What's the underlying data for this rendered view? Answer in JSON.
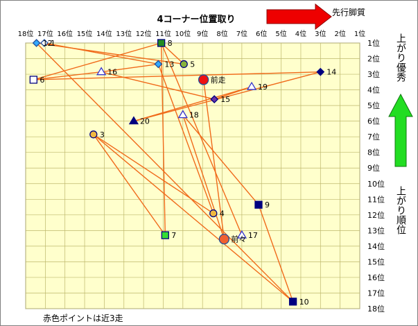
{
  "chart_data": {
    "type": "scatter",
    "title": "4コーナー位置取り",
    "top_arrow_label": "先行脚質",
    "right_arrow_label_top": "上がり優秀",
    "right_arrow_label_bottom": "上がり順位",
    "footnote": "赤色ポイントは近3走",
    "x_ticks": [
      "18位",
      "17位",
      "16位",
      "15位",
      "14位",
      "13位",
      "12位",
      "11位",
      "10位",
      "9位",
      "8位",
      "7位",
      "6位",
      "5位",
      "4位",
      "3位",
      "2位",
      "1位"
    ],
    "y_ticks": [
      "1位",
      "2位",
      "3位",
      "4位",
      "5位",
      "6位",
      "7位",
      "8位",
      "9位",
      "10位",
      "11位",
      "12位",
      "13位",
      "14位",
      "15位",
      "16位",
      "17位",
      "18位"
    ],
    "x_axis_reversed": true,
    "xlim": [
      18,
      1
    ],
    "ylim": [
      1,
      18
    ],
    "grid": true,
    "points": [
      {
        "label": "1",
        "x": 17.05,
        "y": 1.0,
        "marker": "diamond",
        "fill": "#ffffff",
        "stroke": "#1f4e9c"
      },
      {
        "label": "12",
        "x": 17.45,
        "y": 1.0,
        "marker": "diamond",
        "fill": "#33aaff",
        "stroke": "#1f4e9c"
      },
      {
        "label": "8",
        "x": 11.1,
        "y": 1.0,
        "marker": "square",
        "fill": "#228b22",
        "stroke": "#000080"
      },
      {
        "label": "13",
        "x": 11.25,
        "y": 2.35,
        "marker": "diamond",
        "fill": "#33aaff",
        "stroke": "#1f4e9c"
      },
      {
        "label": "5",
        "x": 9.95,
        "y": 2.35,
        "marker": "circle",
        "fill": "#8ab43c",
        "stroke": "#000080"
      },
      {
        "label": "14",
        "x": 3.0,
        "y": 2.85,
        "marker": "diamond",
        "fill": "#000080",
        "stroke": "#000080"
      },
      {
        "label": "16",
        "x": 14.15,
        "y": 2.85,
        "marker": "triangle",
        "fill": "#ffffff",
        "stroke": "#3333cc"
      },
      {
        "label": "6",
        "x": 17.6,
        "y": 3.35,
        "marker": "square",
        "fill": "#ffffff",
        "stroke": "#000080"
      },
      {
        "label": "前走",
        "x": 8.95,
        "y": 3.35,
        "marker": "circle",
        "fill": "#ee1111",
        "stroke": "#1f4e9c",
        "big": true
      },
      {
        "label": "19",
        "x": 6.5,
        "y": 3.8,
        "marker": "triangle",
        "fill": "#ffffff",
        "stroke": "#3333cc"
      },
      {
        "label": "15",
        "x": 8.4,
        "y": 4.6,
        "marker": "diamond",
        "fill": "#6633aa",
        "stroke": "#000080"
      },
      {
        "label": "18",
        "x": 10.0,
        "y": 5.6,
        "marker": "triangle",
        "fill": "#ffffff",
        "stroke": "#3333cc"
      },
      {
        "label": "20",
        "x": 12.5,
        "y": 6.0,
        "marker": "triangle",
        "fill": "#000080",
        "stroke": "#000080"
      },
      {
        "label": "3",
        "x": 14.55,
        "y": 6.85,
        "marker": "circle",
        "fill": "#f0b840",
        "stroke": "#000080"
      },
      {
        "label": "9",
        "x": 6.15,
        "y": 11.35,
        "marker": "square",
        "fill": "#000080",
        "stroke": "#000080"
      },
      {
        "label": "4",
        "x": 8.45,
        "y": 11.9,
        "marker": "circle",
        "fill": "#f0b840",
        "stroke": "#000080"
      },
      {
        "label": "7",
        "x": 10.9,
        "y": 13.3,
        "marker": "square",
        "fill": "#33dd33",
        "stroke": "#000080"
      },
      {
        "label": "17",
        "x": 7.0,
        "y": 13.3,
        "marker": "triangle",
        "fill": "#ffffff",
        "stroke": "#3333cc"
      },
      {
        "label": "前々",
        "x": 7.9,
        "y": 13.55,
        "marker": "circle",
        "fill": "#f06030",
        "stroke": "#1f4e9c",
        "big": true
      },
      {
        "label": "10",
        "x": 4.4,
        "y": 17.55,
        "marker": "square",
        "fill": "#000080",
        "stroke": "#000080"
      }
    ],
    "connections": [
      [
        "6",
        "14"
      ],
      [
        "14",
        "20"
      ],
      [
        "20",
        "19"
      ],
      [
        "19",
        "15"
      ],
      [
        "15",
        "16"
      ],
      [
        "16",
        "6"
      ],
      [
        "6",
        "8"
      ],
      [
        "8",
        "5"
      ],
      [
        "5",
        "12"
      ],
      [
        "1",
        "13"
      ],
      [
        "13",
        "4"
      ],
      [
        "4",
        "3"
      ],
      [
        "3",
        "7"
      ],
      [
        "7",
        "8"
      ],
      [
        "8",
        "17"
      ],
      [
        "12",
        "10"
      ],
      [
        "10",
        "3"
      ],
      [
        "18",
        "9"
      ],
      [
        "9",
        "10"
      ],
      [
        "18",
        "前々"
      ],
      [
        "前走",
        "前々"
      ],
      [
        "16",
        "13"
      ]
    ]
  },
  "colors": {
    "plot_bg": "#ffffcc",
    "grid": "#bdb76b",
    "line": "#f06a1a",
    "arrow_red": "#ee0000",
    "arrow_green": "#22dd22"
  }
}
